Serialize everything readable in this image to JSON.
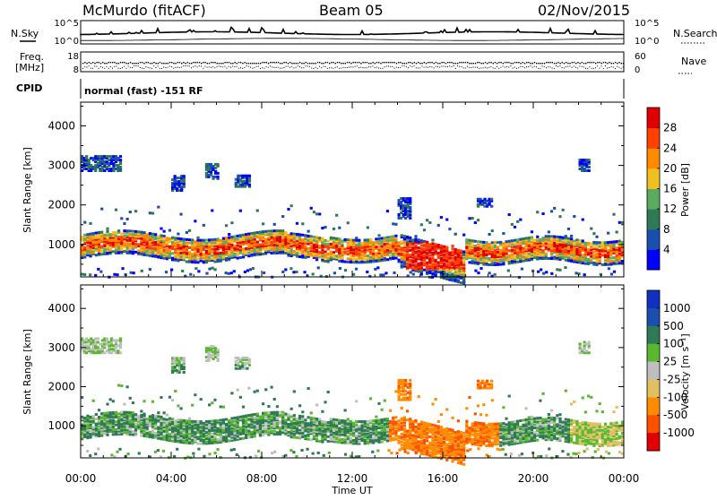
{
  "header": {
    "station": "McMurdo (fitACF)",
    "beam": "Beam 05",
    "date": "02/Nov/2015"
  },
  "strip_labels": {
    "nsky": "N.Sky",
    "nsearch": "N.Search",
    "freq_line1": "Freq.",
    "freq_line2": "[MHz]",
    "nave": "Nave",
    "cpid": "CPID",
    "cpid_text": "normal (fast) -151 RF"
  },
  "colors": {
    "power_scale": [
      "#0000ff",
      "#1a4fb0",
      "#2f7a55",
      "#5aaa60",
      "#f0c020",
      "#ff8c00",
      "#ff4000",
      "#e00000"
    ],
    "velocity_scale": [
      "#1030c0",
      "#1a4fb0",
      "#2f7a55",
      "#5ab830",
      "#bebebe",
      "#e0c060",
      "#ff8c00",
      "#ff5000",
      "#e00000"
    ]
  },
  "chart_data": [
    {
      "type": "line",
      "panel": "noise",
      "left_ticks": [
        "10^5",
        "10^0"
      ],
      "right_ticks": [
        "10^5",
        "10^0"
      ],
      "series": [
        {
          "name": "N.Sky"
        },
        {
          "name": "N.Search"
        }
      ]
    },
    {
      "type": "scatter",
      "panel": "frequency-nave",
      "left_ticks": [
        "18",
        "8"
      ],
      "right_ticks": [
        "60",
        "0"
      ],
      "left_ylim": [
        8,
        18
      ],
      "right_ylim": [
        0,
        60
      ]
    },
    {
      "type": "heatmap",
      "panel": "power",
      "ylabel": "Slant Range [km]",
      "yticks": [
        1000,
        2000,
        3000,
        4000
      ],
      "ylim": [
        180,
        4600
      ],
      "xticks": [
        "00:00",
        "04:00",
        "08:00",
        "12:00",
        "16:00",
        "20:00",
        "00:00"
      ],
      "xlim_hours": [
        0,
        24
      ],
      "colorbar_label": "Power [dB]",
      "colorbar_ticks": [
        4,
        8,
        12,
        16,
        20,
        24,
        28
      ],
      "colorbar_range": [
        0,
        32
      ]
    },
    {
      "type": "heatmap",
      "panel": "velocity",
      "ylabel": "Slant Range [km]",
      "xlabel": "Time UT",
      "yticks": [
        1000,
        2000,
        3000,
        4000
      ],
      "ylim": [
        180,
        4600
      ],
      "xticks": [
        "00:00",
        "04:00",
        "08:00",
        "12:00",
        "16:00",
        "20:00",
        "00:00"
      ],
      "xlim_hours": [
        0,
        24
      ],
      "colorbar_label": "Velocity [m s⁻¹]",
      "colorbar_ticks": [
        "1000",
        "500",
        "100",
        "25",
        "-25",
        "-100",
        "-500",
        "-1000"
      ]
    }
  ]
}
